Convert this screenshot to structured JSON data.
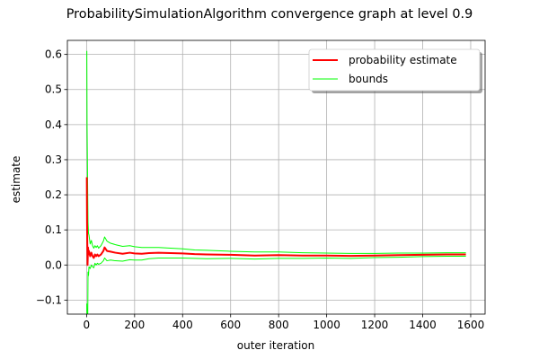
{
  "chart_data": {
    "type": "line",
    "title": "ProbabilitySimulationAlgorithm convergence graph at level 0.9",
    "xlabel": "outer iteration",
    "ylabel": "estimate",
    "xlim": [
      -80,
      1660
    ],
    "ylim": [
      -0.14,
      0.64
    ],
    "xticks": [
      0,
      200,
      400,
      600,
      800,
      1000,
      1200,
      1400,
      1600
    ],
    "yticks": [
      -0.1,
      0.0,
      0.1,
      0.2,
      0.3,
      0.4,
      0.5,
      0.6
    ],
    "xtick_labels": [
      "0",
      "200",
      "400",
      "600",
      "800",
      "1000",
      "1200",
      "1400",
      "1600"
    ],
    "ytick_labels": [
      "−0.1",
      "0.0",
      "0.1",
      "0.2",
      "0.3",
      "0.4",
      "0.5",
      "0.6"
    ],
    "grid": true,
    "legend_position": "top-right",
    "colors": {
      "estimate": "#ff0000",
      "bounds": "#00ff00",
      "grid": "#b0b0b0"
    },
    "series": [
      {
        "name": "probability estimate",
        "x": [
          1,
          2,
          4,
          6,
          8,
          10,
          15,
          20,
          25,
          30,
          35,
          40,
          45,
          50,
          60,
          70,
          75,
          85,
          100,
          120,
          150,
          180,
          200,
          230,
          260,
          300,
          350,
          400,
          450,
          500,
          600,
          700,
          800,
          900,
          1000,
          1100,
          1200,
          1300,
          1400,
          1500,
          1580
        ],
        "y": [
          0.25,
          0.12,
          0.0,
          0.05,
          0.03,
          0.04,
          0.025,
          0.035,
          0.025,
          0.02,
          0.03,
          0.025,
          0.03,
          0.025,
          0.03,
          0.04,
          0.05,
          0.04,
          0.038,
          0.035,
          0.032,
          0.035,
          0.033,
          0.032,
          0.034,
          0.035,
          0.034,
          0.033,
          0.031,
          0.03,
          0.029,
          0.027,
          0.028,
          0.027,
          0.027,
          0.026,
          0.027,
          0.028,
          0.029,
          0.03,
          0.03
        ]
      },
      {
        "name": "bounds",
        "x": [
          1,
          2,
          4,
          6,
          8,
          10,
          15,
          20,
          25,
          30,
          35,
          40,
          45,
          50,
          60,
          70,
          75,
          85,
          100,
          120,
          150,
          180,
          200,
          230,
          260,
          300,
          350,
          400,
          450,
          500,
          600,
          700,
          800,
          900,
          1000,
          1100,
          1200,
          1300,
          1400,
          1500,
          1580
        ],
        "y": [
          0.61,
          0.4,
          0.25,
          0.12,
          0.09,
          0.085,
          0.06,
          0.07,
          0.055,
          0.048,
          0.055,
          0.05,
          0.055,
          0.048,
          0.055,
          0.068,
          0.08,
          0.068,
          0.062,
          0.058,
          0.053,
          0.055,
          0.052,
          0.05,
          0.05,
          0.05,
          0.048,
          0.046,
          0.043,
          0.042,
          0.039,
          0.037,
          0.037,
          0.035,
          0.034,
          0.033,
          0.033,
          0.034,
          0.034,
          0.035,
          0.035
        ]
      },
      {
        "name": "",
        "x": [
          1,
          2,
          4,
          6,
          8,
          10,
          15,
          20,
          25,
          30,
          35,
          40,
          45,
          50,
          60,
          70,
          75,
          85,
          100,
          120,
          150,
          180,
          200,
          230,
          260,
          300,
          350,
          400,
          450,
          500,
          600,
          700,
          800,
          900,
          1000,
          1100,
          1200,
          1300,
          1400,
          1500,
          1580
        ],
        "y": [
          -0.11,
          -0.16,
          -0.25,
          -0.02,
          -0.03,
          -0.005,
          -0.01,
          0.0,
          -0.005,
          -0.008,
          0.005,
          0.0,
          0.005,
          0.002,
          0.005,
          0.012,
          0.02,
          0.012,
          0.014,
          0.012,
          0.011,
          0.015,
          0.014,
          0.014,
          0.018,
          0.02,
          0.02,
          0.02,
          0.019,
          0.018,
          0.019,
          0.017,
          0.019,
          0.019,
          0.02,
          0.019,
          0.021,
          0.022,
          0.024,
          0.025,
          0.025
        ]
      }
    ],
    "legend": [
      {
        "label": "probability estimate",
        "series": "estimate"
      },
      {
        "label": "bounds",
        "series": "bounds"
      }
    ]
  }
}
